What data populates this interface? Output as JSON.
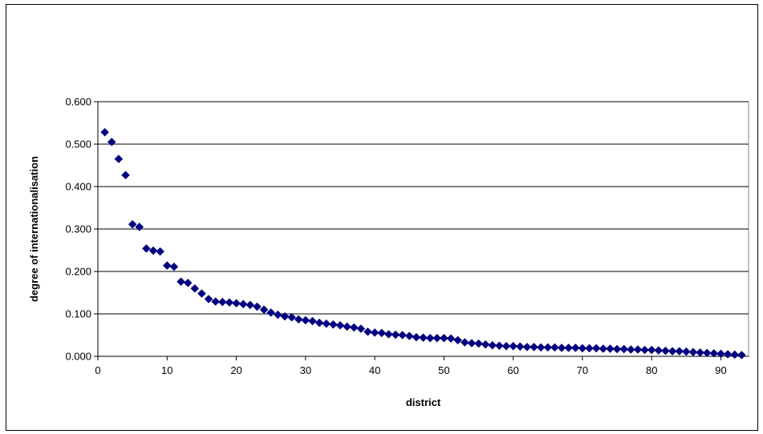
{
  "chart_data": {
    "type": "scatter",
    "title": "",
    "xlabel": "district",
    "ylabel": "degree of internationalisation",
    "xlim": [
      0,
      94
    ],
    "ylim": [
      0,
      0.6
    ],
    "x_ticks": [
      0,
      10,
      20,
      30,
      40,
      50,
      60,
      70,
      80,
      90
    ],
    "x_tick_labels": [
      "0",
      "10",
      "20",
      "30",
      "40",
      "50",
      "60",
      "70",
      "80",
      "90"
    ],
    "y_ticks": [
      0,
      0.1,
      0.2,
      0.3,
      0.4,
      0.5,
      0.6
    ],
    "y_tick_labels": [
      "0.000",
      "0.100",
      "0.200",
      "0.300",
      "0.400",
      "0.500",
      "0.600"
    ],
    "grid": "horizontal",
    "legend": "none",
    "marker_color": "#000080",
    "marker": "diamond",
    "series": [
      {
        "x": [
          1,
          2,
          3,
          4,
          5,
          6,
          7,
          8,
          9,
          10,
          11,
          12,
          13,
          14,
          15,
          16,
          17,
          18,
          19,
          20,
          21,
          22,
          23,
          24,
          25,
          26,
          27,
          28,
          29,
          30,
          31,
          32,
          33,
          34,
          35,
          36,
          37,
          38,
          39,
          40,
          41,
          42,
          43,
          44,
          45,
          46,
          47,
          48,
          49,
          50,
          51,
          52,
          53,
          54,
          55,
          56,
          57,
          58,
          59,
          60,
          61,
          62,
          63,
          64,
          65,
          66,
          67,
          68,
          69,
          70,
          71,
          72,
          73,
          74,
          75,
          76,
          77,
          78,
          79,
          80,
          81,
          82,
          83,
          84,
          85,
          86,
          87,
          88,
          89,
          90,
          91,
          92,
          93
        ],
        "y": [
          0.528,
          0.505,
          0.465,
          0.427,
          0.311,
          0.305,
          0.254,
          0.249,
          0.247,
          0.214,
          0.211,
          0.176,
          0.173,
          0.16,
          0.148,
          0.135,
          0.129,
          0.128,
          0.127,
          0.125,
          0.123,
          0.121,
          0.117,
          0.11,
          0.103,
          0.098,
          0.094,
          0.092,
          0.087,
          0.085,
          0.083,
          0.079,
          0.077,
          0.075,
          0.073,
          0.07,
          0.068,
          0.065,
          0.058,
          0.056,
          0.055,
          0.052,
          0.051,
          0.05,
          0.048,
          0.045,
          0.044,
          0.043,
          0.043,
          0.043,
          0.042,
          0.038,
          0.033,
          0.031,
          0.03,
          0.028,
          0.026,
          0.025,
          0.024,
          0.024,
          0.023,
          0.022,
          0.022,
          0.021,
          0.021,
          0.021,
          0.02,
          0.02,
          0.02,
          0.019,
          0.019,
          0.019,
          0.018,
          0.018,
          0.017,
          0.017,
          0.016,
          0.016,
          0.015,
          0.015,
          0.014,
          0.013,
          0.012,
          0.012,
          0.011,
          0.01,
          0.009,
          0.008,
          0.007,
          0.006,
          0.005,
          0.004,
          0.003
        ]
      }
    ]
  }
}
